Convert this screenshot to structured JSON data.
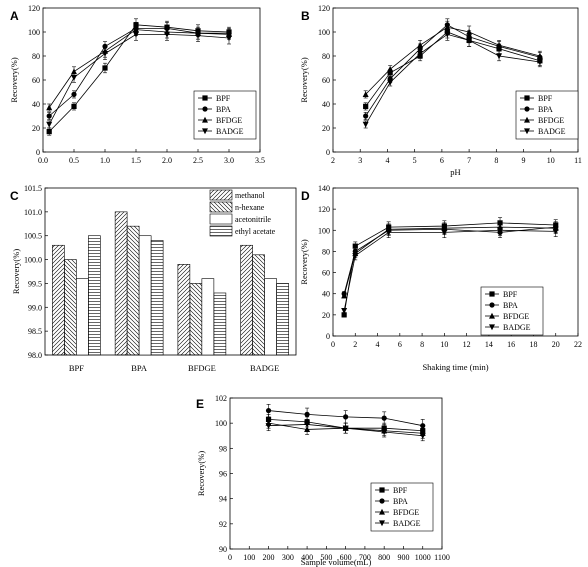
{
  "chart_data": [
    {
      "panel": "A",
      "type": "line",
      "xlabel": "",
      "ylabel": "Recovery(%)",
      "xlim": [
        0.0,
        3.5
      ],
      "ylim": [
        0,
        120
      ],
      "x_ticks": [
        "0.0",
        "0.5",
        "1.0",
        "1.5",
        "2.0",
        "2.5",
        "3.0",
        "3.5"
      ],
      "y_ticks": [
        "0",
        "20",
        "40",
        "60",
        "80",
        "100",
        "120"
      ],
      "x": [
        0.1,
        0.5,
        1.0,
        1.5,
        2.0,
        2.5,
        3.0
      ],
      "legend_position": "lower-right",
      "series": [
        {
          "name": "BPF",
          "marker": "square",
          "values": [
            17,
            38,
            70,
            106,
            104,
            101,
            100
          ],
          "err": [
            3,
            3,
            4,
            5,
            5,
            5,
            4
          ]
        },
        {
          "name": "BPA",
          "marker": "circle",
          "values": [
            30,
            48,
            88,
            103,
            103,
            99,
            99
          ],
          "err": [
            3,
            3,
            4,
            5,
            5,
            5,
            4
          ]
        },
        {
          "name": "BFDGE",
          "marker": "triangle-up",
          "values": [
            37,
            67,
            84,
            102,
            100,
            99,
            98
          ],
          "err": [
            3,
            4,
            5,
            5,
            5,
            5,
            4
          ]
        },
        {
          "name": "BADGE",
          "marker": "triangle-down",
          "values": [
            23,
            62,
            82,
            98,
            98,
            97,
            95
          ],
          "err": [
            3,
            4,
            5,
            5,
            5,
            5,
            5
          ]
        }
      ]
    },
    {
      "panel": "B",
      "type": "line",
      "xlabel": "pH",
      "ylabel": "Recovery(%)",
      "xlim": [
        2,
        11
      ],
      "ylim": [
        0,
        120
      ],
      "x_ticks": [
        "2",
        "3",
        "4",
        "5",
        "6",
        "7",
        "8",
        "9",
        "10",
        "11"
      ],
      "y_ticks": [
        "0",
        "20",
        "40",
        "60",
        "80",
        "100",
        "120"
      ],
      "x": [
        3.2,
        4.1,
        5.2,
        6.2,
        7.0,
        8.1,
        9.6
      ],
      "legend_position": "lower-right",
      "series": [
        {
          "name": "BPF",
          "marker": "square",
          "values": [
            38,
            66,
            80,
            100,
            93,
            86,
            76
          ],
          "err": [
            3,
            3,
            4,
            5,
            5,
            4,
            4
          ]
        },
        {
          "name": "BPA",
          "marker": "circle",
          "values": [
            30,
            61,
            86,
            106,
            96,
            88,
            79
          ],
          "err": [
            3,
            3,
            4,
            5,
            5,
            4,
            4
          ]
        },
        {
          "name": "BFDGE",
          "marker": "triangle-up",
          "values": [
            48,
            69,
            89,
            104,
            100,
            89,
            80
          ],
          "err": [
            3,
            3,
            4,
            5,
            5,
            4,
            4
          ]
        },
        {
          "name": "BADGE",
          "marker": "triangle-down",
          "values": [
            23,
            58,
            82,
            98,
            93,
            80,
            75
          ],
          "err": [
            3,
            3,
            4,
            5,
            5,
            4,
            4
          ]
        }
      ]
    },
    {
      "panel": "C",
      "type": "bar",
      "xlabel": "",
      "ylabel": "Recovery(%)",
      "ylim": [
        98.0,
        101.5
      ],
      "y_ticks": [
        "98.0",
        "98.5",
        "99.0",
        "99.5",
        "100.0",
        "100.5",
        "101.0",
        "101.5"
      ],
      "categories": [
        "BPF",
        "BPA",
        "BFDGE",
        "BADGE"
      ],
      "legend_position": "top-right",
      "series": [
        {
          "name": "methanol",
          "pattern": "diag-right",
          "values": [
            100.3,
            101.0,
            99.9,
            100.3
          ]
        },
        {
          "name": "n-hexane",
          "pattern": "diag-left",
          "values": [
            100.0,
            100.7,
            99.5,
            100.1
          ]
        },
        {
          "name": "acetonitrile",
          "pattern": "none",
          "values": [
            99.6,
            100.5,
            99.6,
            99.6
          ]
        },
        {
          "name": "ethyl acetate",
          "pattern": "horizontal",
          "values": [
            100.5,
            100.4,
            99.3,
            99.5
          ]
        }
      ]
    },
    {
      "panel": "D",
      "type": "line",
      "xlabel": "Shaking time (min)",
      "ylabel": "Recovery(%)",
      "xlim": [
        0,
        22
      ],
      "ylim": [
        0,
        140
      ],
      "x_ticks": [
        "0",
        "2",
        "4",
        "6",
        "8",
        "10",
        "12",
        "14",
        "16",
        "18",
        "20",
        "22"
      ],
      "y_ticks": [
        "0",
        "20",
        "40",
        "60",
        "80",
        "100",
        "120",
        "140"
      ],
      "x": [
        1,
        2,
        5,
        10,
        15,
        20
      ],
      "legend_position": "lower-right",
      "series": [
        {
          "name": "BPF",
          "marker": "square",
          "values": [
            20,
            85,
            103,
            104,
            107,
            105
          ],
          "err": [
            2,
            4,
            5,
            5,
            5,
            5
          ]
        },
        {
          "name": "BPA",
          "marker": "circle",
          "values": [
            40,
            80,
            100,
            101,
            98,
            103
          ],
          "err": [
            2,
            4,
            5,
            5,
            5,
            5
          ]
        },
        {
          "name": "BFDGE",
          "marker": "triangle-up",
          "values": [
            38,
            78,
            101,
            102,
            103,
            102
          ],
          "err": [
            2,
            4,
            5,
            5,
            5,
            5
          ]
        },
        {
          "name": "BADGE",
          "marker": "triangle-down",
          "values": [
            24,
            76,
            98,
            98,
            100,
            99
          ],
          "err": [
            2,
            4,
            5,
            5,
            5,
            5
          ]
        }
      ]
    },
    {
      "panel": "E",
      "type": "line",
      "xlabel": "Sample volume(mL)",
      "ylabel": "Recovery(%)",
      "xlim": [
        0,
        1100
      ],
      "ylim": [
        90,
        102
      ],
      "x_ticks": [
        "0",
        "100",
        "200",
        "300",
        "400",
        "500",
        "600",
        "700",
        "800",
        "900",
        "1000",
        "1100"
      ],
      "y_ticks": [
        "90",
        "92",
        "94",
        "96",
        "98",
        "100",
        "102"
      ],
      "x": [
        200,
        400,
        600,
        800,
        1000
      ],
      "legend_position": "lower-right",
      "series": [
        {
          "name": "BPF",
          "marker": "square",
          "values": [
            100.3,
            100.1,
            99.6,
            99.6,
            99.4
          ],
          "err": [
            0.4,
            0.4,
            0.4,
            0.4,
            0.4
          ]
        },
        {
          "name": "BPA",
          "marker": "circle",
          "values": [
            101.0,
            100.7,
            100.5,
            100.4,
            99.8
          ],
          "err": [
            0.5,
            0.5,
            0.5,
            0.5,
            0.5
          ]
        },
        {
          "name": "BFDGE",
          "marker": "triangle-up",
          "values": [
            100.0,
            99.5,
            99.6,
            99.4,
            99.2
          ],
          "err": [
            0.4,
            0.4,
            0.4,
            0.4,
            0.4
          ]
        },
        {
          "name": "BADGE",
          "marker": "triangle-down",
          "values": [
            99.8,
            99.9,
            99.6,
            99.3,
            99.0
          ],
          "err": [
            0.4,
            0.4,
            0.4,
            0.4,
            0.4
          ]
        }
      ]
    }
  ]
}
